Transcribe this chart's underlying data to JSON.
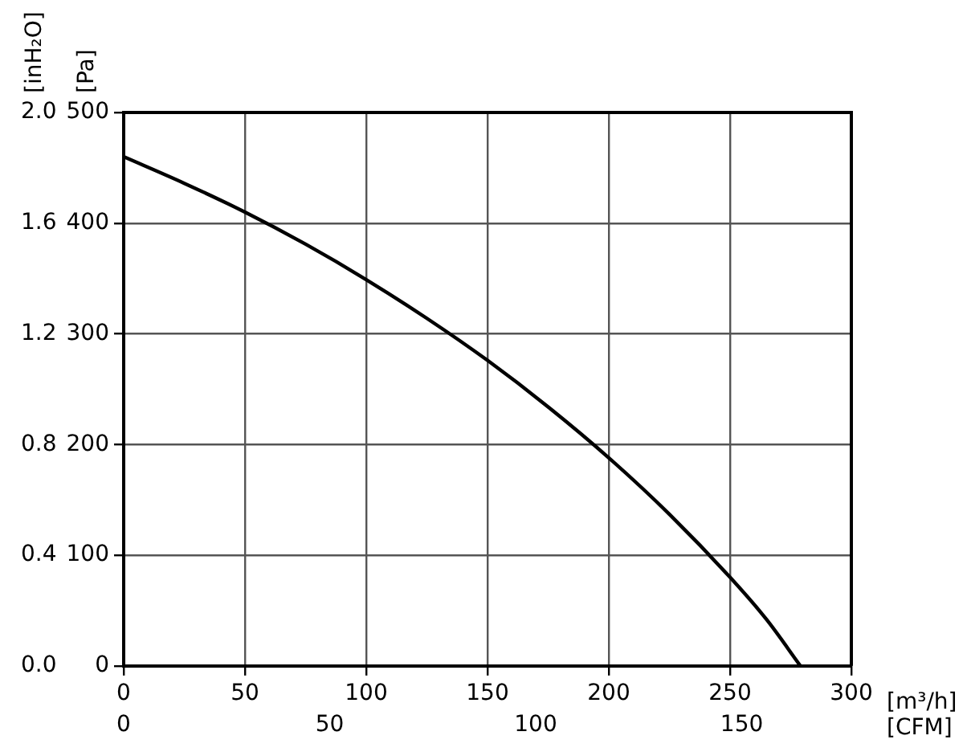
{
  "chart_data": {
    "type": "line",
    "xlabel": "[m³/h]",
    "x2label": "[CFM]",
    "ylabel": "[Pa]",
    "y2label": "[inH₂O]",
    "series": [
      {
        "color": "#000000",
        "x": [
          0,
          25,
          50,
          75,
          100,
          125,
          150,
          175,
          200,
          225,
          250,
          265,
          279
        ],
        "values": [
          460,
          436,
          410,
          381,
          349,
          314,
          276,
          234,
          188,
          137,
          80,
          42,
          0
        ]
      }
    ],
    "xlim": [
      0,
      300
    ],
    "xticks": [
      0,
      50,
      100,
      150,
      200,
      250,
      300
    ],
    "x2lim": [
      0,
      176.6
    ],
    "x2ticks": [
      0,
      50,
      100,
      150
    ],
    "ylim": [
      0,
      500
    ],
    "yticks": [
      0,
      100,
      200,
      300,
      400,
      500
    ],
    "y2lim": [
      0,
      2
    ],
    "y2ticks": [
      {
        "value": 0,
        "label": "0.0"
      },
      0.4,
      0.8,
      1.2,
      1.6,
      {
        "value": 2,
        "label": "2.0"
      }
    ],
    "grid": true,
    "legend": false,
    "line_style": "solid"
  }
}
